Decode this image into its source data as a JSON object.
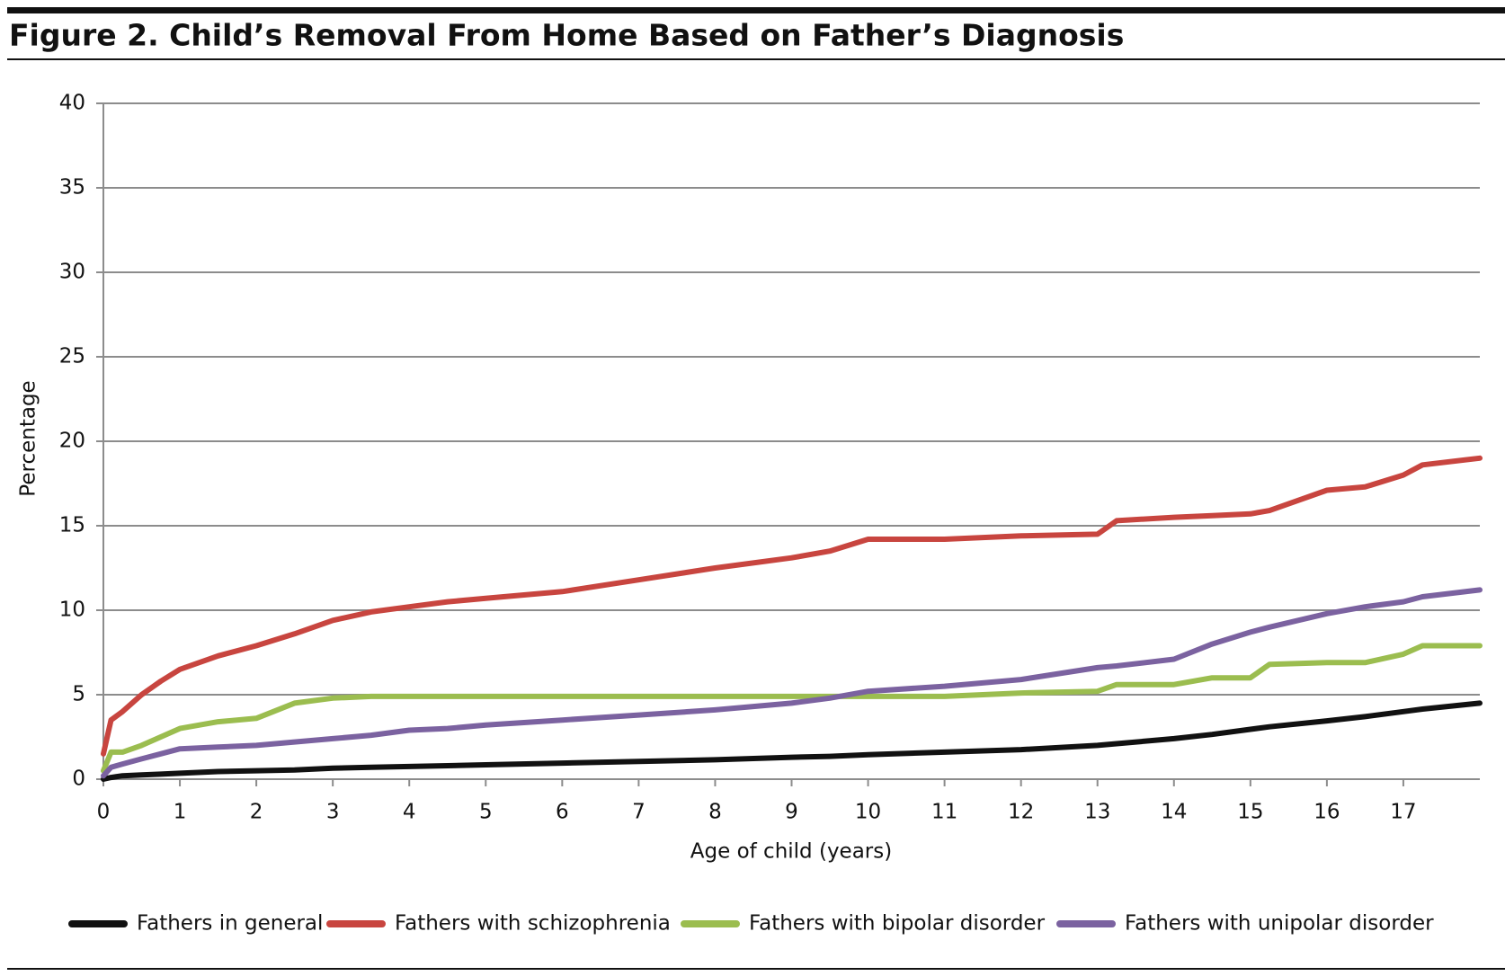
{
  "chart_data": {
    "type": "line",
    "title": "Figure 2. Child’s Removal From Home Based on Father’s Diagnosis",
    "x_label": "Age of child (years)",
    "y_label": "Percentage",
    "x": [
      0,
      0.1,
      0.25,
      0.5,
      0.75,
      1,
      1.5,
      2,
      2.5,
      3,
      3.5,
      4,
      4.5,
      5,
      6,
      7,
      8,
      9,
      9.5,
      10,
      11,
      12,
      13,
      13.25,
      14,
      14.5,
      15,
      15.25,
      16,
      16.5,
      17,
      17.25,
      18
    ],
    "series": [
      {
        "name": "Fathers in general",
        "color": "#111111",
        "values": [
          0,
          0.1,
          0.2,
          0.25,
          0.3,
          0.35,
          0.45,
          0.5,
          0.55,
          0.65,
          0.7,
          0.75,
          0.8,
          0.85,
          0.95,
          1.05,
          1.15,
          1.3,
          1.35,
          1.45,
          1.6,
          1.75,
          2.0,
          2.1,
          2.4,
          2.65,
          2.95,
          3.1,
          3.45,
          3.7,
          4.0,
          4.15,
          4.5
        ]
      },
      {
        "name": "Fathers with schizophrenia",
        "color": "#c8453f",
        "values": [
          1.5,
          3.5,
          4.0,
          5.0,
          5.8,
          6.5,
          7.3,
          7.9,
          8.6,
          9.4,
          9.9,
          10.2,
          10.5,
          10.7,
          11.1,
          11.8,
          12.5,
          13.1,
          13.5,
          14.2,
          14.2,
          14.4,
          14.5,
          15.3,
          15.5,
          15.6,
          15.7,
          15.9,
          17.1,
          17.3,
          18.0,
          18.6,
          19.0
        ]
      },
      {
        "name": "Fathers with bipolar disorder",
        "color": "#9bbd4f",
        "values": [
          0.5,
          1.6,
          1.6,
          2.0,
          2.5,
          3.0,
          3.4,
          3.6,
          4.5,
          4.8,
          4.9,
          4.9,
          4.9,
          4.9,
          4.9,
          4.9,
          4.9,
          4.9,
          4.9,
          4.9,
          4.9,
          5.1,
          5.2,
          5.6,
          5.6,
          6.0,
          6.0,
          6.8,
          6.9,
          6.9,
          7.4,
          7.9,
          7.9
        ]
      },
      {
        "name": "Fathers with unipolar disorder",
        "color": "#7b62a0",
        "values": [
          0.2,
          0.7,
          0.9,
          1.2,
          1.5,
          1.8,
          1.9,
          2.0,
          2.2,
          2.4,
          2.6,
          2.9,
          3.0,
          3.2,
          3.5,
          3.8,
          4.1,
          4.5,
          4.8,
          5.2,
          5.5,
          5.9,
          6.6,
          6.7,
          7.1,
          8.0,
          8.7,
          9.0,
          9.8,
          10.2,
          10.5,
          10.8,
          11.2
        ]
      }
    ],
    "xlim": [
      0,
      18
    ],
    "xticks": [
      0,
      1,
      2,
      3,
      4,
      5,
      6,
      7,
      8,
      9,
      10,
      11,
      12,
      13,
      14,
      15,
      16,
      17
    ],
    "ylim": [
      0,
      40
    ],
    "yticks": [
      0,
      5,
      10,
      15,
      20,
      25,
      30,
      35,
      40
    ],
    "grid": true,
    "legend": "bottom"
  }
}
